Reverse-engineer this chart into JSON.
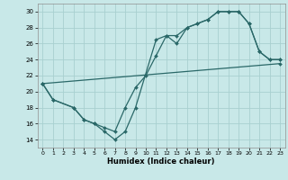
{
  "background_color": "#c8e8e8",
  "grid_color": "#a8d0d0",
  "line_color": "#2a6868",
  "xlabel": "Humidex (Indice chaleur)",
  "xlim": [
    -0.5,
    23.5
  ],
  "ylim": [
    13,
    31
  ],
  "yticks": [
    14,
    16,
    18,
    20,
    22,
    24,
    26,
    28,
    30
  ],
  "xticks": [
    0,
    1,
    2,
    3,
    4,
    5,
    6,
    7,
    8,
    9,
    10,
    11,
    12,
    13,
    14,
    15,
    16,
    17,
    18,
    19,
    20,
    21,
    22,
    23
  ],
  "line1_x": [
    0,
    1,
    3,
    4,
    5,
    6,
    7,
    8,
    9,
    11,
    12,
    13,
    14,
    15,
    16,
    17,
    18,
    19,
    20,
    21,
    22,
    23
  ],
  "line1_y": [
    21,
    19,
    18,
    16.5,
    16,
    15,
    14,
    15,
    18,
    26.5,
    27,
    26,
    28,
    28.5,
    29,
    30,
    30,
    30,
    28.5,
    25,
    24,
    24
  ],
  "line2_x": [
    0,
    23
  ],
  "line2_y": [
    21,
    23.5
  ],
  "line3_x": [
    0,
    1,
    3,
    4,
    5,
    6,
    7,
    8,
    9,
    10,
    11,
    12,
    13,
    14,
    15,
    16,
    17,
    18,
    19,
    20,
    21,
    22,
    23
  ],
  "line3_y": [
    21,
    19,
    18,
    16.5,
    16,
    15.5,
    15,
    18,
    20.5,
    22,
    24.5,
    27,
    27,
    28,
    28.5,
    29,
    30,
    30,
    30,
    28.5,
    25,
    24,
    24
  ]
}
